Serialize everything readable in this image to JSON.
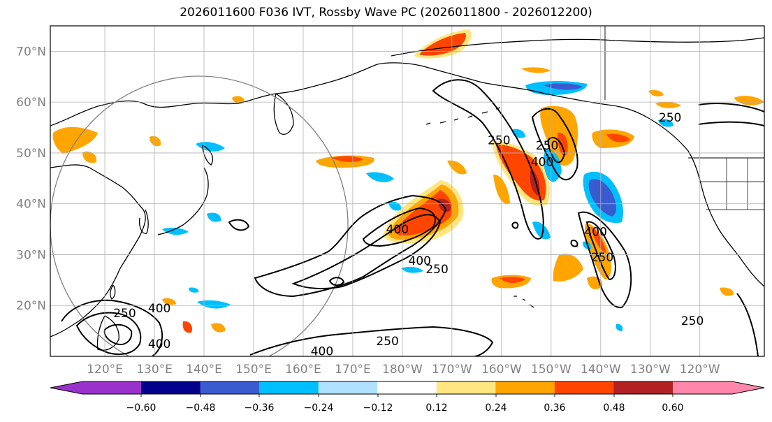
{
  "title": "2026011600 F036 IVT, Rossby Wave PC (2026011800 - 2026012200)",
  "map": {
    "lat_labels": [
      "70°N",
      "60°N",
      "50°N",
      "40°N",
      "30°N",
      "20°N"
    ],
    "lon_labels": [
      "120°E",
      "130°E",
      "140°E",
      "150°E",
      "160°E",
      "170°E",
      "180°W",
      "170°W",
      "160°W",
      "150°W",
      "140°W",
      "130°W",
      "120°W"
    ],
    "grid_color": "#b0b0b0",
    "axis_label_color": "#808080",
    "ivt_contour_color": "#000000",
    "ivt_contour_labels": [
      {
        "text": "250",
        "lon": -160.5,
        "lat": 52.5
      },
      {
        "text": "250",
        "lon": -150.8,
        "lat": 51.5
      },
      {
        "text": "400",
        "lon": -151.8,
        "lat": 48.3
      },
      {
        "text": "250",
        "lon": -126.0,
        "lat": 57.0
      },
      {
        "text": "400",
        "lon": -181.0,
        "lat": 35.0
      },
      {
        "text": "400",
        "lon": -176.5,
        "lat": 28.8
      },
      {
        "text": "250",
        "lon": -173.0,
        "lat": 27.2
      },
      {
        "text": "400",
        "lon": -141.0,
        "lat": 34.5
      },
      {
        "text": "250",
        "lon": -139.7,
        "lat": 29.5
      },
      {
        "text": "250",
        "lon": 124.0,
        "lat": 18.5
      },
      {
        "text": "400",
        "lon": 131.0,
        "lat": 19.5
      },
      {
        "text": "400",
        "lon": 131.0,
        "lat": 12.5
      },
      {
        "text": "400",
        "lon": 163.8,
        "lat": 11.0
      },
      {
        "text": "250",
        "lon": 177.0,
        "lat": 13.0
      },
      {
        "text": "250",
        "lon": -121.5,
        "lat": 17.0
      }
    ],
    "reference_circle": {
      "lon": 140.0,
      "lat": 36.0,
      "color": "#808080"
    }
  },
  "colorbar": {
    "ticks": [
      "−0.60",
      "−0.48",
      "−0.36",
      "−0.24",
      "−0.12",
      "0.12",
      "0.24",
      "0.36",
      "0.48",
      "0.60"
    ],
    "colors": [
      "#9932cc",
      "#00008b",
      "#3a5bd0",
      "#00bfff",
      "#b0e2ff",
      "#ffffff",
      "#ffe680",
      "#ffa500",
      "#ff4500",
      "#b22222",
      "#ff88aa"
    ]
  }
}
